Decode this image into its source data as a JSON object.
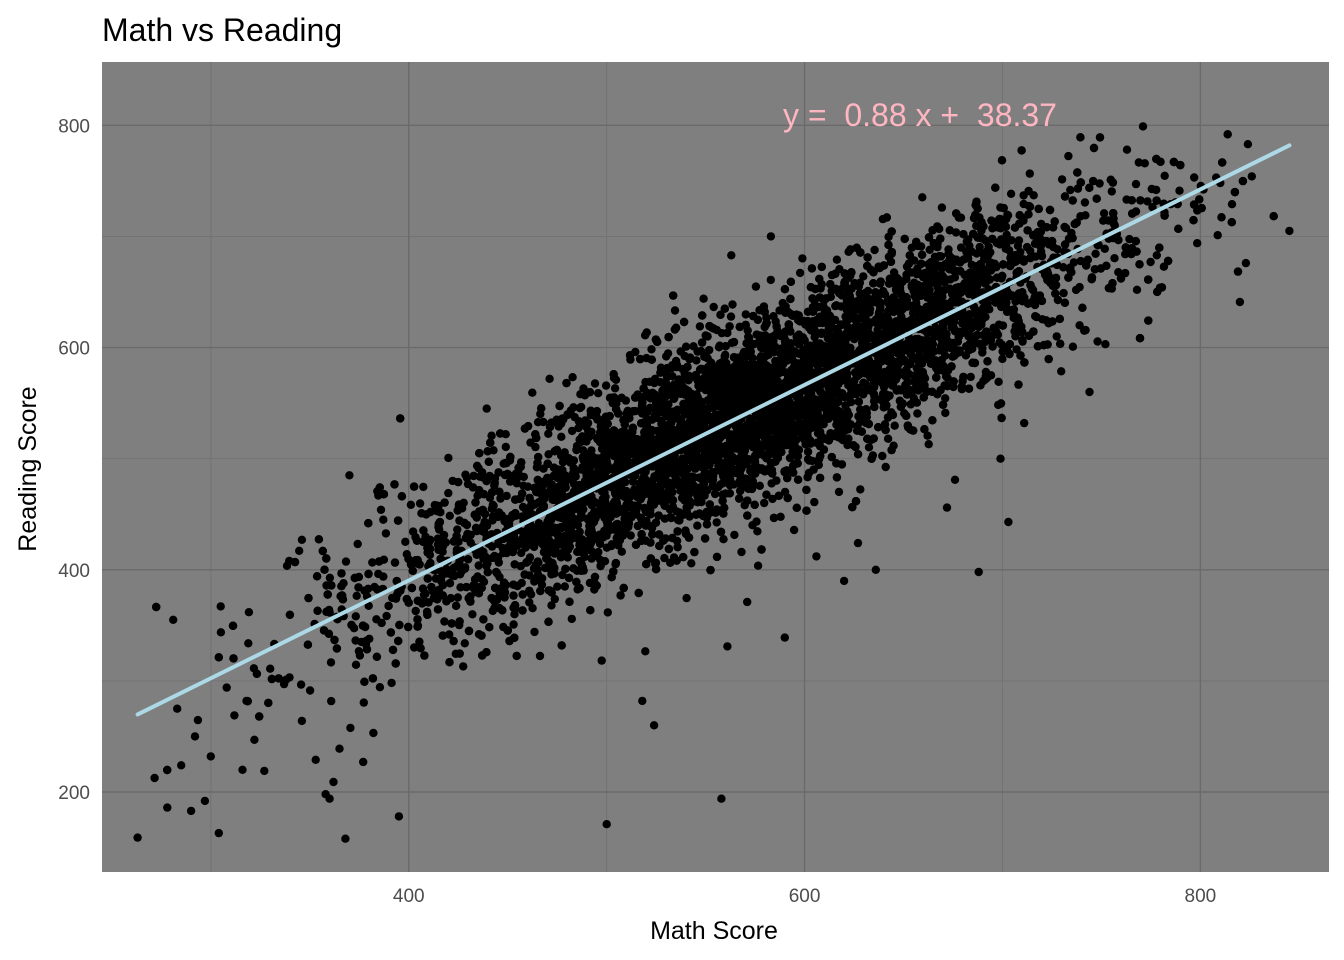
{
  "chart_data": {
    "type": "scatter",
    "title": "Math vs Reading",
    "xlabel": "Math Score",
    "ylabel": "Reading Score",
    "xlim": [
      245,
      865
    ],
    "ylim": [
      128,
      857
    ],
    "x_ticks": [
      400,
      600,
      800
    ],
    "y_ticks": [
      200,
      400,
      600,
      800
    ],
    "grid": true,
    "annotation": "y =  0.88 x +  38.37",
    "fit_line": {
      "slope": 0.88,
      "intercept": 38.37,
      "x_start": 263,
      "x_end": 845
    },
    "point_count_estimate": 8000,
    "series": [
      {
        "points": [
          [
            263,
            159
          ],
          [
            278,
            186
          ],
          [
            281,
            355
          ],
          [
            283,
            275
          ],
          [
            285,
            224
          ],
          [
            290,
            183
          ],
          [
            292,
            250
          ],
          [
            297,
            192
          ],
          [
            300,
            232
          ],
          [
            304,
            163
          ],
          [
            305,
            367
          ],
          [
            308,
            294
          ],
          [
            316,
            220
          ],
          [
            318,
            282
          ],
          [
            322,
            247
          ],
          [
            327,
            219
          ],
          [
            330,
            311
          ],
          [
            338,
            301
          ],
          [
            346,
            264
          ],
          [
            353,
            229
          ],
          [
            358,
            198
          ],
          [
            360,
            194
          ],
          [
            362,
            209
          ],
          [
            365,
            239
          ],
          [
            368,
            158
          ],
          [
            370,
            485
          ],
          [
            377,
            227
          ],
          [
            395,
            178
          ],
          [
            500,
            171
          ],
          [
            518,
            282
          ],
          [
            524,
            260
          ],
          [
            558,
            194
          ],
          [
            561,
            331
          ],
          [
            571,
            371
          ],
          [
            590,
            339
          ],
          [
            606,
            412
          ],
          [
            620,
            390
          ],
          [
            627,
            424
          ],
          [
            636,
            400
          ],
          [
            672,
            456
          ],
          [
            699,
            500
          ],
          [
            703,
            443
          ],
          [
            711,
            532
          ],
          [
            739,
            620
          ],
          [
            762,
            684
          ],
          [
            771,
            799
          ],
          [
            785,
            729
          ],
          [
            808,
            753
          ],
          [
            816,
            729
          ],
          [
            820,
            641
          ],
          [
            824,
            783
          ],
          [
            826,
            754
          ],
          [
            845,
            705
          ],
          [
            823,
            676
          ],
          [
            778,
            683
          ],
          [
            768,
            652
          ],
          [
            752,
            603
          ],
          [
            744,
            560
          ],
          [
            676,
            481
          ],
          [
            688,
            398
          ],
          [
            589,
            640
          ],
          [
            583,
            700
          ],
          [
            563,
            683
          ],
          [
            549,
            644
          ],
          [
            489,
            557
          ],
          [
            468,
            533
          ],
          [
            449,
            522
          ],
          [
            420,
            469
          ],
          [
            411,
            452
          ],
          [
            399,
            414
          ],
          [
            386,
            454
          ],
          [
            346,
            427
          ]
        ]
      }
    ]
  }
}
